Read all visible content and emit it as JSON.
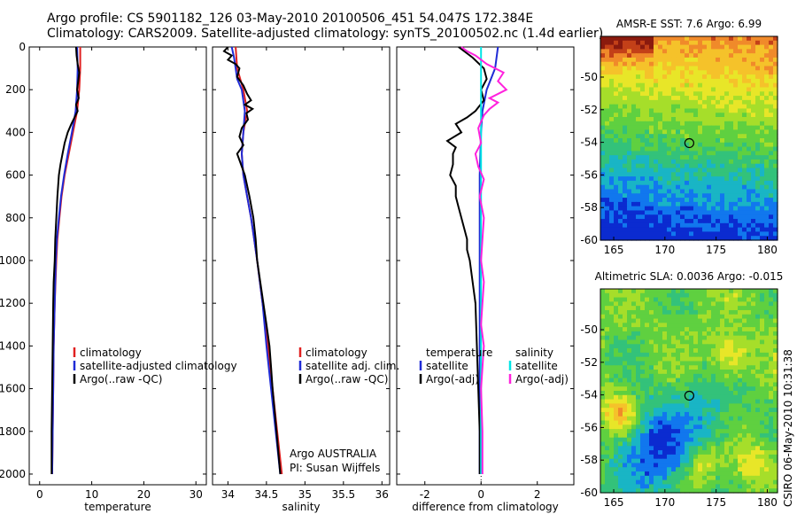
{
  "header": {
    "line1": "Argo profile: CS 5901182_126 03-May-2010 20100506_451 54.047S 172.384E",
    "line2": "Climatology: CARS2009. Satellite-adjusted climatology: synTS_20100502.nc (1.4d earlier)"
  },
  "footer": {
    "credit": "CSIRO 06-May-2010 10:31:38",
    "argo_country": "Argo AUSTRALIA",
    "pi": "PI: Susan Wijffels"
  },
  "colors": {
    "climatology": "#e02020",
    "satellite": "#1f2bd6",
    "argo": "#000000",
    "salinity_satellite": "#00e5e5",
    "salinity_argo": "#ff22dd"
  },
  "chart_data": [
    {
      "id": "temperature",
      "type": "line",
      "xlabel": "temperature",
      "ylabel": "",
      "xlim": [
        -2,
        32
      ],
      "ylim": [
        2050,
        0
      ],
      "xticks": [
        0,
        10,
        20,
        30
      ],
      "yticks": [
        0,
        200,
        400,
        600,
        800,
        1000,
        1200,
        1400,
        1600,
        1800,
        2000
      ],
      "legend": [
        "climatology",
        "satellite-adjusted climatology",
        "Argo(..raw -QC)"
      ],
      "series": [
        {
          "name": "climatology",
          "color": "#e02020",
          "y": [
            0,
            100,
            200,
            300,
            400,
            500,
            600,
            700,
            800,
            900,
            1000,
            1200,
            1400,
            1600,
            1800,
            2000
          ],
          "x": [
            7.8,
            7.8,
            7.6,
            7.2,
            6.4,
            5.6,
            4.8,
            4.2,
            3.8,
            3.4,
            3.2,
            2.9,
            2.7,
            2.6,
            2.5,
            2.4
          ]
        },
        {
          "name": "satellite-adjusted climatology",
          "color": "#1f2bd6",
          "y": [
            0,
            100,
            200,
            300,
            400,
            500,
            600,
            700,
            800,
            900,
            1000,
            1200,
            1400,
            1600,
            1800,
            2000
          ],
          "x": [
            7.2,
            7.3,
            7.2,
            6.9,
            6.2,
            5.4,
            4.7,
            4.1,
            3.7,
            3.3,
            3.1,
            2.9,
            2.7,
            2.6,
            2.5,
            2.4
          ]
        },
        {
          "name": "Argo(..raw -QC)",
          "color": "#000000",
          "y": [
            0,
            40,
            80,
            120,
            160,
            200,
            240,
            270,
            300,
            330,
            360,
            400,
            450,
            500,
            550,
            600,
            700,
            800,
            900,
            1000,
            1100,
            1200,
            1400,
            1600,
            1800,
            2000
          ],
          "x": [
            7.0,
            7.1,
            7.3,
            7.6,
            7.4,
            7.2,
            7.5,
            7.0,
            7.3,
            6.7,
            6.1,
            5.4,
            4.8,
            4.4,
            4.0,
            3.7,
            3.4,
            3.2,
            3.0,
            2.9,
            2.7,
            2.6,
            2.5,
            2.4,
            2.3,
            2.3
          ]
        }
      ]
    },
    {
      "id": "salinity",
      "type": "line",
      "xlabel": "salinity",
      "ylabel": "",
      "xlim": [
        33.8,
        36.1
      ],
      "ylim": [
        2050,
        0
      ],
      "xticks": [
        34,
        34.5,
        35,
        35.5,
        36
      ],
      "legend": [
        "climatology",
        "satellite adj. clim.",
        "Argo(..raw -QC)"
      ],
      "series": [
        {
          "name": "climatology",
          "color": "#e02020",
          "y": [
            0,
            100,
            200,
            300,
            400,
            500,
            600,
            700,
            800,
            900,
            1000,
            1200,
            1400,
            1600,
            1800,
            2000
          ],
          "x": [
            34.1,
            34.12,
            34.2,
            34.25,
            34.2,
            34.18,
            34.2,
            34.25,
            34.3,
            34.34,
            34.38,
            34.45,
            34.52,
            34.58,
            34.64,
            34.7
          ]
        },
        {
          "name": "satellite adj. clim.",
          "color": "#1f2bd6",
          "y": [
            0,
            50,
            100,
            150,
            200,
            300,
            400,
            500,
            600,
            700,
            800,
            900,
            1000,
            1200,
            1400,
            1600,
            1800,
            2000
          ],
          "x": [
            34.05,
            34.08,
            34.1,
            34.12,
            34.18,
            34.22,
            34.2,
            34.18,
            34.2,
            34.25,
            34.3,
            34.34,
            34.38,
            34.45,
            34.5,
            34.56,
            34.62,
            34.68
          ]
        },
        {
          "name": "Argo(..raw -QC)",
          "color": "#000000",
          "y": [
            0,
            20,
            40,
            60,
            80,
            100,
            140,
            180,
            220,
            250,
            270,
            290,
            310,
            340,
            380,
            420,
            460,
            500,
            540,
            600,
            700,
            800,
            900,
            1000,
            1100,
            1200,
            1300,
            1400,
            1500,
            1600,
            1800,
            2000
          ],
          "x": [
            34.0,
            33.95,
            34.05,
            34.0,
            34.1,
            34.15,
            34.12,
            34.2,
            34.25,
            34.3,
            34.22,
            34.32,
            34.24,
            34.26,
            34.18,
            34.15,
            34.2,
            34.12,
            34.16,
            34.22,
            34.28,
            34.33,
            34.36,
            34.38,
            34.42,
            34.46,
            34.5,
            34.54,
            34.56,
            34.58,
            34.63,
            34.68
          ]
        }
      ]
    },
    {
      "id": "difference",
      "type": "line",
      "xlabel": "difference from climatology",
      "ylabel": "",
      "xlim": [
        -3,
        3.3
      ],
      "ylim": [
        2050,
        0
      ],
      "xticks": [
        -2,
        0,
        2
      ],
      "legend_temperature_header": "temperature",
      "legend_salinity_header": "salinity",
      "legend": [
        "satellite",
        "Argo(-adj)",
        "satellite",
        "Argo(-adj)"
      ],
      "series": [
        {
          "name": "temperature satellite",
          "color": "#1f2bd6",
          "y": [
            0,
            100,
            200,
            300,
            400,
            600,
            800,
            1000,
            1200,
            1400,
            1600,
            1800,
            2000
          ],
          "x": [
            0.6,
            0.5,
            0.2,
            0.05,
            0.0,
            -0.05,
            -0.05,
            -0.05,
            -0.05,
            -0.05,
            -0.05,
            -0.05,
            -0.05
          ]
        },
        {
          "name": "temperature Argo(-adj)",
          "color": "#000000",
          "y": [
            0,
            50,
            100,
            150,
            200,
            250,
            300,
            330,
            360,
            400,
            440,
            470,
            500,
            550,
            600,
            650,
            700,
            750,
            800,
            850,
            900,
            950,
            1000,
            1100,
            1200,
            1400,
            1600,
            1800,
            2000
          ],
          "x": [
            -0.8,
            -0.3,
            0.1,
            0.2,
            0.0,
            0.1,
            -0.2,
            -0.5,
            -0.9,
            -0.7,
            -1.2,
            -0.9,
            -1.0,
            -1.0,
            -1.1,
            -0.9,
            -0.9,
            -0.8,
            -0.7,
            -0.6,
            -0.5,
            -0.5,
            -0.4,
            -0.3,
            -0.2,
            -0.15,
            -0.1,
            -0.05,
            -0.05
          ]
        },
        {
          "name": "salinity satellite",
          "color": "#00e5e5",
          "y": [
            0,
            200,
            400,
            600,
            800,
            1000,
            1200,
            1400,
            1600,
            1800,
            2000
          ],
          "x": [
            0.0,
            0.0,
            0.0,
            0.0,
            0.0,
            0.0,
            0.0,
            0.0,
            0.0,
            0.0,
            0.0
          ]
        },
        {
          "name": "salinity Argo(-adj)",
          "color": "#ff22dd",
          "y": [
            0,
            20,
            40,
            80,
            120,
            160,
            200,
            240,
            260,
            290,
            320,
            380,
            450,
            500,
            560,
            620,
            700,
            800,
            900,
            1000,
            1100,
            1200,
            1300,
            1400,
            1500,
            1600,
            1800,
            2000
          ],
          "x": [
            -0.7,
            -0.5,
            -0.2,
            0.2,
            0.8,
            0.6,
            0.9,
            0.3,
            0.6,
            0.3,
            0.1,
            -0.1,
            0.0,
            -0.2,
            -0.1,
            0.1,
            -0.05,
            0.1,
            0.05,
            0.0,
            0.1,
            0.05,
            0.0,
            0.1,
            0.05,
            0.0,
            0.05,
            0.05
          ]
        }
      ]
    },
    {
      "id": "sst-map",
      "type": "heatmap",
      "title": "AMSR-E SST: 7.6 Argo: 6.99",
      "xlim": [
        163.7,
        181
      ],
      "ylim": [
        -60,
        -47.5
      ],
      "xticks": [
        165,
        170,
        175,
        180
      ],
      "yticks": [
        -60,
        -58,
        -56,
        -54,
        -52,
        -50
      ],
      "marker": {
        "x": 172.384,
        "y": -54.047
      },
      "colors": [
        "#0b2bd0",
        "#1177ee",
        "#19b5c5",
        "#33c27a",
        "#5fd040",
        "#a6de2a",
        "#e8e628",
        "#f5c22a",
        "#f08a2a",
        "#c34018",
        "#8a1a0e"
      ]
    },
    {
      "id": "sla-map",
      "type": "heatmap",
      "title": "Altimetric SLA: 0.0036 Argo: -0.015",
      "xlim": [
        163.7,
        181
      ],
      "ylim": [
        -60,
        -47.5
      ],
      "xticks": [
        165,
        170,
        175,
        180
      ],
      "yticks": [
        -60,
        -58,
        -56,
        -54,
        -52,
        -50
      ],
      "marker": {
        "x": 172.384,
        "y": -54.047
      },
      "colors": [
        "#0b2bd0",
        "#1177ee",
        "#19b5c5",
        "#33c27a",
        "#5fd040",
        "#a6de2a",
        "#e8e628",
        "#f5c22a",
        "#f08a2a",
        "#c34018",
        "#8a1a0e"
      ]
    }
  ]
}
